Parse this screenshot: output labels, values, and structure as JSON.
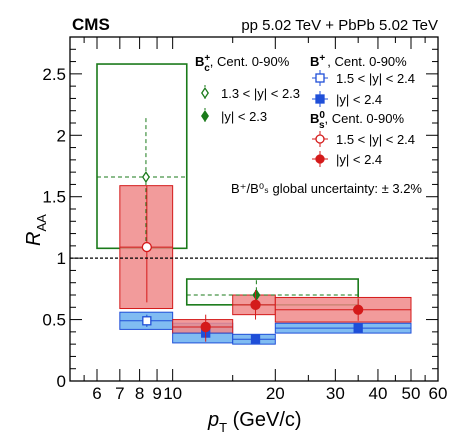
{
  "chart_data": {
    "type": "scatter",
    "experiment_label": "CMS",
    "collision_label": "pp 5.02 TeV + PbPb 5.02 TeV",
    "xlabel": "p",
    "xlabel_sub": "T",
    "xlabel_unit": " (GeV/c)",
    "ylabel": "R",
    "ylabel_sub": "AA",
    "x_scale": "log",
    "xlim": [
      5,
      60
    ],
    "ylim": [
      0,
      2.8
    ],
    "x_ticks": [
      6,
      7,
      8,
      9,
      10,
      20,
      30,
      40,
      50,
      60
    ],
    "x_tick_labels": [
      "6",
      "7",
      "8",
      "9",
      "10",
      "20",
      "30",
      "40",
      "50",
      "60"
    ],
    "y_ticks": [
      0,
      0.5,
      1,
      1.5,
      2,
      2.5
    ],
    "y_tick_labels": [
      "0",
      "0.5",
      "1",
      "1.5",
      "2",
      "2.5"
    ],
    "reference_line": 1,
    "global_uncertainty_text": "B⁺/B⁰ₛ global uncertainty: ± 3.2%",
    "legend_groups": [
      {
        "id": "bc",
        "title": "B",
        "title_sup": "+",
        "title_sub": "c",
        "title_rest": ", Cent. 0-90%"
      },
      {
        "id": "bp",
        "title": "B",
        "title_sup": "+",
        "title_sub": "",
        "title_rest": ", Cent. 0-90%"
      },
      {
        "id": "bs",
        "title": "B",
        "title_sup": "0",
        "title_sub": "s",
        "title_rest": ", Cent. 0-90%"
      }
    ],
    "series": [
      {
        "name": "1.3 < |y| < 2.3",
        "group": "bc",
        "color": "#1a7a1a",
        "fill": "none",
        "marker": "diamond-open",
        "points": [
          {
            "x": 8.35,
            "y": 1.66,
            "err_lo": 0.52,
            "err_hi": 0.48,
            "x_lo": 6,
            "x_hi": 11,
            "sys_lo": 0.58,
            "sys_hi": 0.92
          }
        ]
      },
      {
        "name": "|y| < 2.3",
        "group": "bc",
        "color": "#1a7a1a",
        "fill": "none",
        "marker": "diamond-filled",
        "points": [
          {
            "x": 17.6,
            "y": 0.7,
            "err_lo": 0.12,
            "err_hi": 0.12,
            "x_lo": 11,
            "x_hi": 35,
            "sys_lo": 0.08,
            "sys_hi": 0.13
          }
        ]
      },
      {
        "name": "1.5 < |y| < 2.4",
        "group": "bp",
        "color": "#1f4fd8",
        "fill": "#6ab0f0",
        "marker": "square-open",
        "points": [
          {
            "x": 8.4,
            "y": 0.49,
            "err_lo": 0.05,
            "err_hi": 0.05,
            "x_lo": 7,
            "x_hi": 10,
            "sys_lo": 0.07,
            "sys_hi": 0.07
          }
        ]
      },
      {
        "name": "|y| < 2.4",
        "group": "bp",
        "color": "#1f4fd8",
        "fill": "#6ab0f0",
        "marker": "square-filled",
        "points": [
          {
            "x": 12.5,
            "y": 0.39,
            "err_lo": 0.03,
            "err_hi": 0.03,
            "x_lo": 10,
            "x_hi": 15,
            "sys_lo": 0.08,
            "sys_hi": 0.08
          },
          {
            "x": 17.5,
            "y": 0.34,
            "err_lo": 0.02,
            "err_hi": 0.02,
            "x_lo": 15,
            "x_hi": 20,
            "sys_lo": 0.04,
            "sys_hi": 0.04
          },
          {
            "x": 35,
            "y": 0.43,
            "err_lo": 0.02,
            "err_hi": 0.02,
            "x_lo": 20,
            "x_hi": 50,
            "sys_lo": 0.04,
            "sys_hi": 0.04
          }
        ]
      },
      {
        "name": "1.5 < |y| < 2.4",
        "group": "bs",
        "color": "#d41a1a",
        "fill": "#f08a8a",
        "marker": "circle-open",
        "points": [
          {
            "x": 8.4,
            "y": 1.09,
            "err_lo": 0.45,
            "err_hi": 0.5,
            "x_lo": 7,
            "x_hi": 10,
            "sys_lo": 0.5,
            "sys_hi": 0.5
          }
        ]
      },
      {
        "name": "|y| < 2.4",
        "group": "bs",
        "color": "#d41a1a",
        "fill": "#f08a8a",
        "marker": "circle-filled",
        "points": [
          {
            "x": 12.5,
            "y": 0.44,
            "err_lo": 0.12,
            "err_hi": 0.1,
            "x_lo": 10,
            "x_hi": 15,
            "sys_lo": 0.05,
            "sys_hi": 0.06
          },
          {
            "x": 17.5,
            "y": 0.62,
            "err_lo": 0.12,
            "err_hi": 0.12,
            "x_lo": 15,
            "x_hi": 20,
            "sys_lo": 0.08,
            "sys_hi": 0.08
          },
          {
            "x": 35,
            "y": 0.58,
            "err_lo": 0.09,
            "err_hi": 0.09,
            "x_lo": 20,
            "x_hi": 50,
            "sys_lo": 0.1,
            "sys_hi": 0.1
          }
        ]
      }
    ]
  }
}
